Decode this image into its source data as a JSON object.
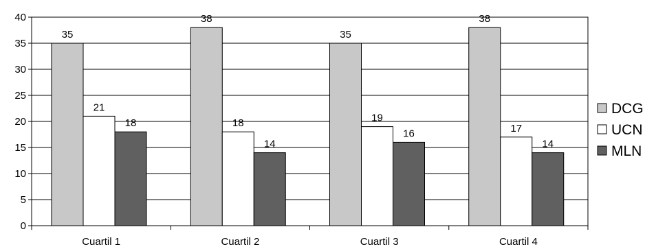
{
  "chart_data": {
    "type": "bar",
    "categories": [
      "Cuartil 1",
      "Cuartil 2",
      "Cuartil 3",
      "Cuartil 4"
    ],
    "series": [
      {
        "name": "DCG",
        "values": [
          35,
          38,
          35,
          38
        ],
        "color": "#c8c8c8"
      },
      {
        "name": "UCN",
        "values": [
          21,
          18,
          19,
          17
        ],
        "color": "#ffffff"
      },
      {
        "name": "MLN",
        "values": [
          18,
          14,
          16,
          14
        ],
        "color": "#606060"
      }
    ],
    "ylim": [
      0,
      40
    ],
    "yticks": [
      0,
      5,
      10,
      15,
      20,
      25,
      30,
      35,
      40
    ],
    "grid": true,
    "legend_position": "right",
    "data_labels": true
  }
}
